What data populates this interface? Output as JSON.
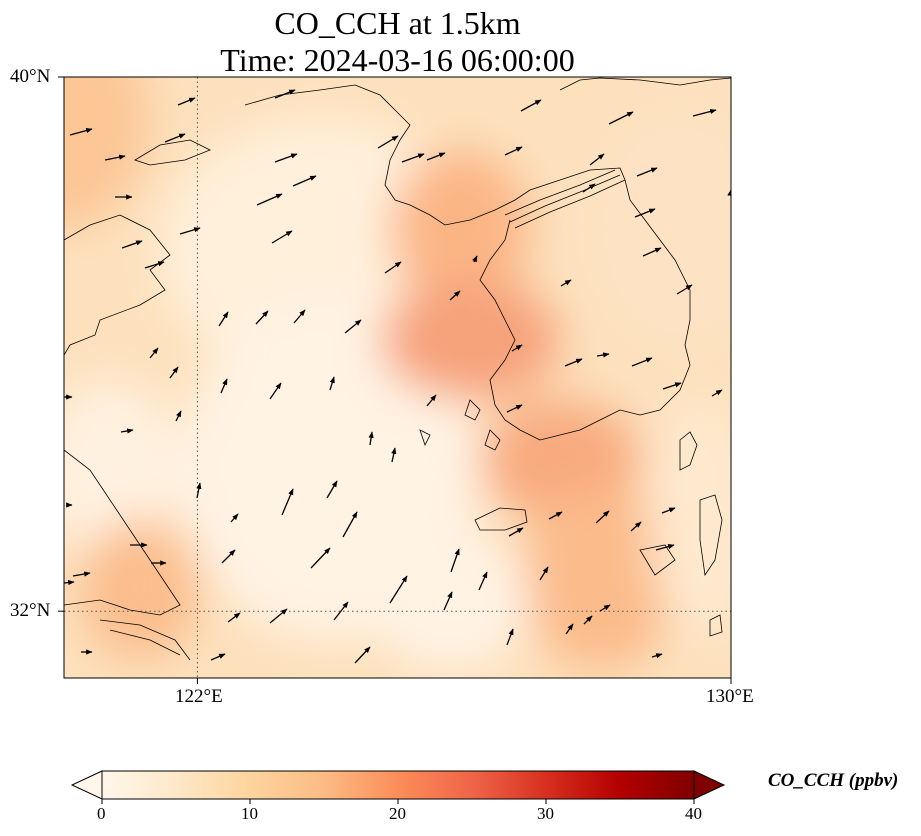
{
  "title": {
    "line1": "CO_CCH at 1.5km",
    "line2": "Time: 2024-03-16 06:00:00"
  },
  "map": {
    "lon_range": [
      120,
      130
    ],
    "lat_range": [
      31,
      40
    ],
    "x_ticks": [
      {
        "lon": 122,
        "label": "122°E"
      },
      {
        "lon": 130,
        "label": "130°E"
      }
    ],
    "y_ticks": [
      {
        "lat": 40,
        "label": "40°N"
      },
      {
        "lat": 32,
        "label": "32°N"
      }
    ],
    "gridlines": "dotted at 122°E and 32°N",
    "field_variable": "CO_CCH",
    "wind_vectors": "shown as black arrows"
  },
  "colorbar": {
    "label": "CO_CCH (ppbv)",
    "min": 0,
    "max": 40,
    "ticks": [
      "0",
      "10",
      "20",
      "30",
      "40"
    ],
    "colormap": "OrRd",
    "colors": [
      "#fff7ec",
      "#fee8c8",
      "#fdd49e",
      "#fdbb84",
      "#fc8d59",
      "#ef6548",
      "#d7301f",
      "#b30000",
      "#7f0000"
    ],
    "extend": "both"
  }
}
